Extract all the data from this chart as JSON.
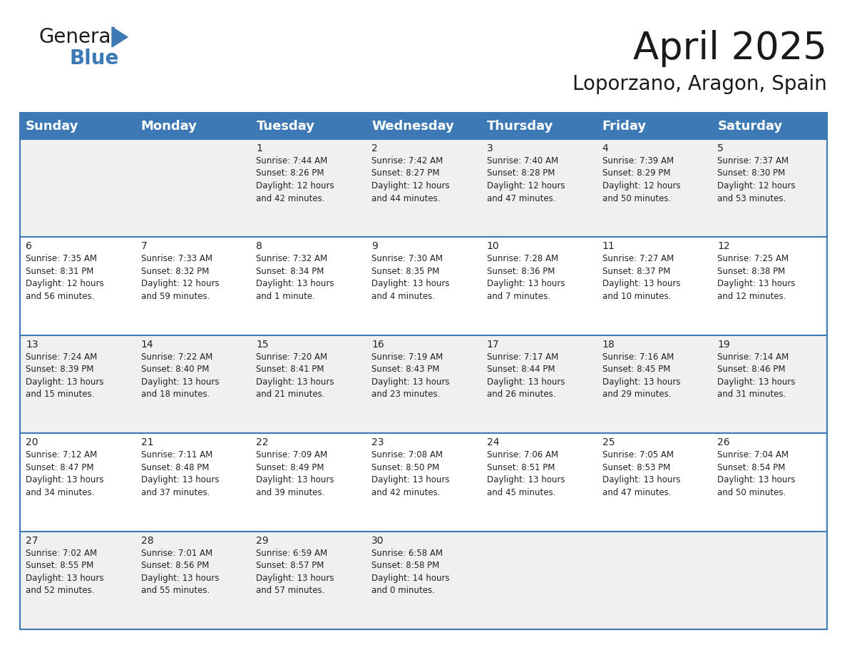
{
  "title": "April 2025",
  "subtitle": "Loporzano, Aragon, Spain",
  "header_color": "#3d7ab5",
  "header_text_color": "#FFFFFF",
  "row_bg_odd": "#f0f0f0",
  "row_bg_even": "#FFFFFF",
  "row_line_color": "#3d7ab5",
  "text_color": "#222222",
  "days_of_week": [
    "Sunday",
    "Monday",
    "Tuesday",
    "Wednesday",
    "Thursday",
    "Friday",
    "Saturday"
  ],
  "header_font_size": 13,
  "cell_font_size": 8.5,
  "day_number_font_size": 10,
  "title_fontsize": 38,
  "subtitle_fontsize": 20,
  "calendar_data": [
    [
      {
        "day": "",
        "info": ""
      },
      {
        "day": "",
        "info": ""
      },
      {
        "day": "1",
        "info": "Sunrise: 7:44 AM\nSunset: 8:26 PM\nDaylight: 12 hours\nand 42 minutes."
      },
      {
        "day": "2",
        "info": "Sunrise: 7:42 AM\nSunset: 8:27 PM\nDaylight: 12 hours\nand 44 minutes."
      },
      {
        "day": "3",
        "info": "Sunrise: 7:40 AM\nSunset: 8:28 PM\nDaylight: 12 hours\nand 47 minutes."
      },
      {
        "day": "4",
        "info": "Sunrise: 7:39 AM\nSunset: 8:29 PM\nDaylight: 12 hours\nand 50 minutes."
      },
      {
        "day": "5",
        "info": "Sunrise: 7:37 AM\nSunset: 8:30 PM\nDaylight: 12 hours\nand 53 minutes."
      }
    ],
    [
      {
        "day": "6",
        "info": "Sunrise: 7:35 AM\nSunset: 8:31 PM\nDaylight: 12 hours\nand 56 minutes."
      },
      {
        "day": "7",
        "info": "Sunrise: 7:33 AM\nSunset: 8:32 PM\nDaylight: 12 hours\nand 59 minutes."
      },
      {
        "day": "8",
        "info": "Sunrise: 7:32 AM\nSunset: 8:34 PM\nDaylight: 13 hours\nand 1 minute."
      },
      {
        "day": "9",
        "info": "Sunrise: 7:30 AM\nSunset: 8:35 PM\nDaylight: 13 hours\nand 4 minutes."
      },
      {
        "day": "10",
        "info": "Sunrise: 7:28 AM\nSunset: 8:36 PM\nDaylight: 13 hours\nand 7 minutes."
      },
      {
        "day": "11",
        "info": "Sunrise: 7:27 AM\nSunset: 8:37 PM\nDaylight: 13 hours\nand 10 minutes."
      },
      {
        "day": "12",
        "info": "Sunrise: 7:25 AM\nSunset: 8:38 PM\nDaylight: 13 hours\nand 12 minutes."
      }
    ],
    [
      {
        "day": "13",
        "info": "Sunrise: 7:24 AM\nSunset: 8:39 PM\nDaylight: 13 hours\nand 15 minutes."
      },
      {
        "day": "14",
        "info": "Sunrise: 7:22 AM\nSunset: 8:40 PM\nDaylight: 13 hours\nand 18 minutes."
      },
      {
        "day": "15",
        "info": "Sunrise: 7:20 AM\nSunset: 8:41 PM\nDaylight: 13 hours\nand 21 minutes."
      },
      {
        "day": "16",
        "info": "Sunrise: 7:19 AM\nSunset: 8:43 PM\nDaylight: 13 hours\nand 23 minutes."
      },
      {
        "day": "17",
        "info": "Sunrise: 7:17 AM\nSunset: 8:44 PM\nDaylight: 13 hours\nand 26 minutes."
      },
      {
        "day": "18",
        "info": "Sunrise: 7:16 AM\nSunset: 8:45 PM\nDaylight: 13 hours\nand 29 minutes."
      },
      {
        "day": "19",
        "info": "Sunrise: 7:14 AM\nSunset: 8:46 PM\nDaylight: 13 hours\nand 31 minutes."
      }
    ],
    [
      {
        "day": "20",
        "info": "Sunrise: 7:12 AM\nSunset: 8:47 PM\nDaylight: 13 hours\nand 34 minutes."
      },
      {
        "day": "21",
        "info": "Sunrise: 7:11 AM\nSunset: 8:48 PM\nDaylight: 13 hours\nand 37 minutes."
      },
      {
        "day": "22",
        "info": "Sunrise: 7:09 AM\nSunset: 8:49 PM\nDaylight: 13 hours\nand 39 minutes."
      },
      {
        "day": "23",
        "info": "Sunrise: 7:08 AM\nSunset: 8:50 PM\nDaylight: 13 hours\nand 42 minutes."
      },
      {
        "day": "24",
        "info": "Sunrise: 7:06 AM\nSunset: 8:51 PM\nDaylight: 13 hours\nand 45 minutes."
      },
      {
        "day": "25",
        "info": "Sunrise: 7:05 AM\nSunset: 8:53 PM\nDaylight: 13 hours\nand 47 minutes."
      },
      {
        "day": "26",
        "info": "Sunrise: 7:04 AM\nSunset: 8:54 PM\nDaylight: 13 hours\nand 50 minutes."
      }
    ],
    [
      {
        "day": "27",
        "info": "Sunrise: 7:02 AM\nSunset: 8:55 PM\nDaylight: 13 hours\nand 52 minutes."
      },
      {
        "day": "28",
        "info": "Sunrise: 7:01 AM\nSunset: 8:56 PM\nDaylight: 13 hours\nand 55 minutes."
      },
      {
        "day": "29",
        "info": "Sunrise: 6:59 AM\nSunset: 8:57 PM\nDaylight: 13 hours\nand 57 minutes."
      },
      {
        "day": "30",
        "info": "Sunrise: 6:58 AM\nSunset: 8:58 PM\nDaylight: 14 hours\nand 0 minutes."
      },
      {
        "day": "",
        "info": ""
      },
      {
        "day": "",
        "info": ""
      },
      {
        "day": "",
        "info": ""
      }
    ]
  ]
}
